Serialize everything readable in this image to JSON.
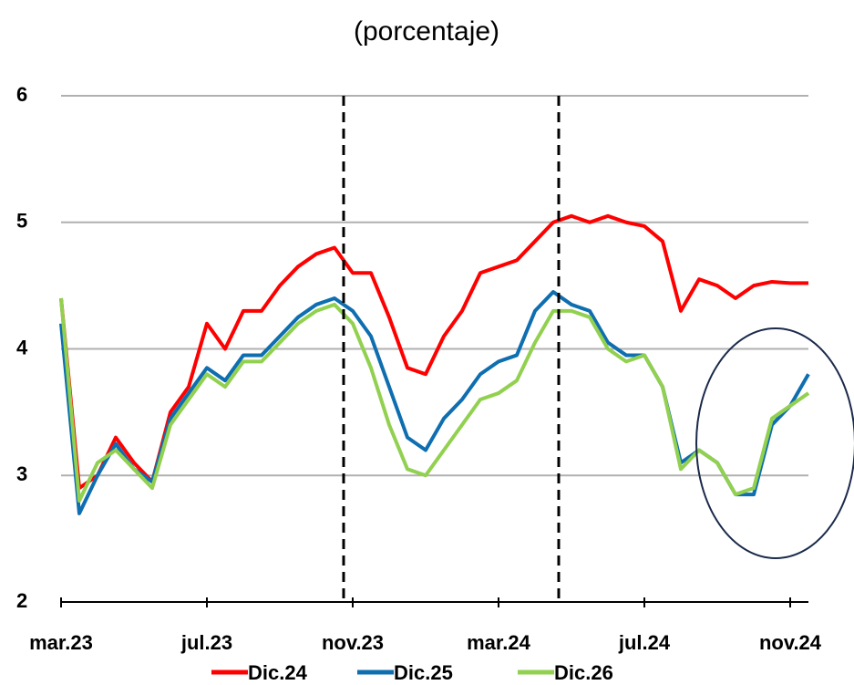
{
  "chart_data": {
    "type": "line",
    "title": "(porcentaje)",
    "categories": [
      "mar.23",
      null,
      null,
      null,
      null,
      null,
      null,
      null,
      "jul.23",
      null,
      null,
      null,
      null,
      null,
      null,
      null,
      "nov.23",
      null,
      null,
      null,
      null,
      null,
      null,
      null,
      "mar.24",
      null,
      null,
      null,
      null,
      null,
      null,
      null,
      "jul.24",
      null,
      null,
      null,
      null,
      null,
      null,
      null,
      "nov.24",
      null
    ],
    "series": [
      {
        "name": "Dic.24",
        "color": "#ff0000",
        "values": [
          4.4,
          2.9,
          3.0,
          3.3,
          3.1,
          2.95,
          3.5,
          3.7,
          4.2,
          4.0,
          4.3,
          4.3,
          4.5,
          4.65,
          4.75,
          4.8,
          4.6,
          4.6,
          4.25,
          3.85,
          3.8,
          4.1,
          4.3,
          4.6,
          4.65,
          4.7,
          4.85,
          5.0,
          5.05,
          5.0,
          5.05,
          5.0,
          4.97,
          4.85,
          4.3,
          4.55,
          4.5,
          4.4,
          4.5,
          4.53,
          4.52,
          4.52
        ]
      },
      {
        "name": "Dic.25",
        "color": "#0e6eb0",
        "values": [
          4.2,
          2.7,
          3.0,
          3.25,
          3.05,
          2.95,
          3.45,
          3.65,
          3.85,
          3.75,
          3.95,
          3.95,
          4.1,
          4.25,
          4.35,
          4.4,
          4.3,
          4.1,
          3.7,
          3.3,
          3.2,
          3.45,
          3.6,
          3.8,
          3.9,
          3.95,
          4.3,
          4.45,
          4.35,
          4.3,
          4.05,
          3.95,
          3.95,
          3.7,
          3.1,
          3.2,
          3.1,
          2.85,
          2.85,
          3.4,
          3.55,
          3.8
        ]
      },
      {
        "name": "Dic.26",
        "color": "#92d050",
        "values": [
          4.4,
          2.8,
          3.1,
          3.2,
          3.05,
          2.9,
          3.4,
          3.6,
          3.8,
          3.7,
          3.9,
          3.9,
          4.05,
          4.2,
          4.3,
          4.35,
          4.2,
          3.85,
          3.4,
          3.05,
          3.0,
          3.2,
          3.4,
          3.6,
          3.65,
          3.75,
          4.05,
          4.3,
          4.3,
          4.25,
          4.0,
          3.9,
          3.95,
          3.7,
          3.05,
          3.2,
          3.1,
          2.85,
          2.9,
          3.45,
          3.55,
          3.65
        ]
      }
    ],
    "ylim": [
      2,
      6
    ],
    "yticks": [
      2,
      3,
      4,
      5,
      6
    ],
    "grid": true
  }
}
